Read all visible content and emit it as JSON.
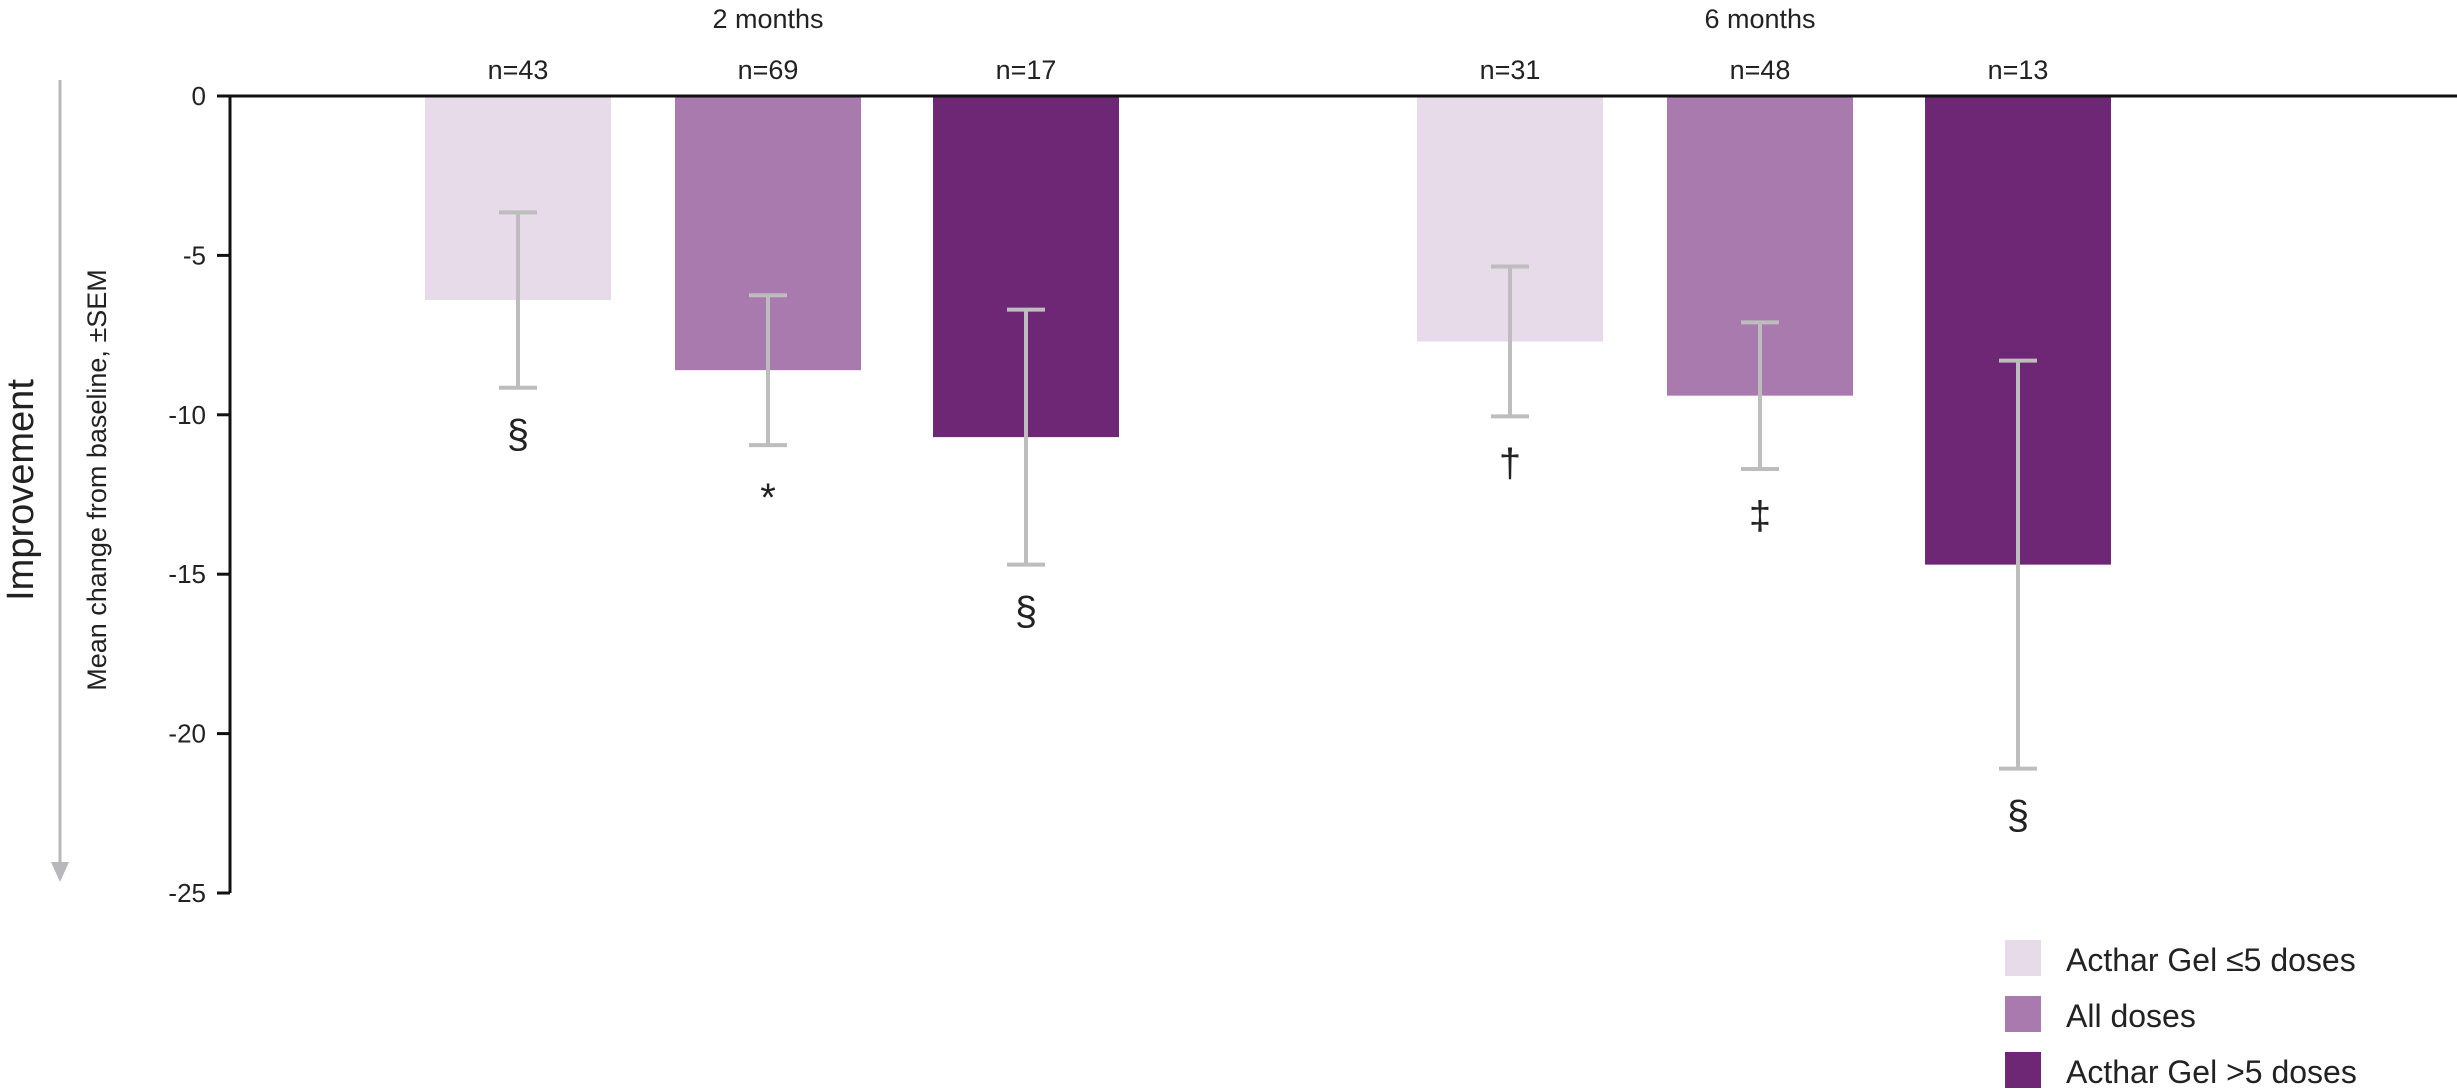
{
  "chart_data": {
    "type": "bar",
    "ylabel": "Mean change from baseline, ±SEM",
    "direction_label": "Improvement",
    "ylim": [
      -25,
      0
    ],
    "yticks": [
      "0",
      "-5",
      "-10",
      "-15",
      "-20",
      "-25"
    ],
    "ytick_values": [
      0,
      -5,
      -10,
      -15,
      -20,
      -25
    ],
    "grid": false,
    "legend_position": "bottom-right",
    "groups": [
      "2 months",
      "6 months"
    ],
    "series": [
      {
        "name": "Acthar Gel ≤5 doses",
        "color": "#e8dbe9",
        "values": [
          -6.4,
          -7.7
        ],
        "sem": [
          2.75,
          2.35
        ],
        "n": [
          "n=43",
          "n=31"
        ],
        "significance": [
          "§",
          "†"
        ]
      },
      {
        "name": "All doses",
        "color": "#a87aad",
        "values": [
          -8.6,
          -9.4
        ],
        "sem": [
          2.35,
          2.3
        ],
        "n": [
          "n=69",
          "n=48"
        ],
        "significance": [
          "*",
          "‡"
        ]
      },
      {
        "name": "Acthar Gel >5 doses",
        "color": "#6d2774",
        "values": [
          -10.7,
          -14.7
        ],
        "sem": [
          4.0,
          6.4
        ],
        "n": [
          "n=17",
          "n=13"
        ],
        "significance": [
          "§",
          "§"
        ]
      }
    ]
  }
}
